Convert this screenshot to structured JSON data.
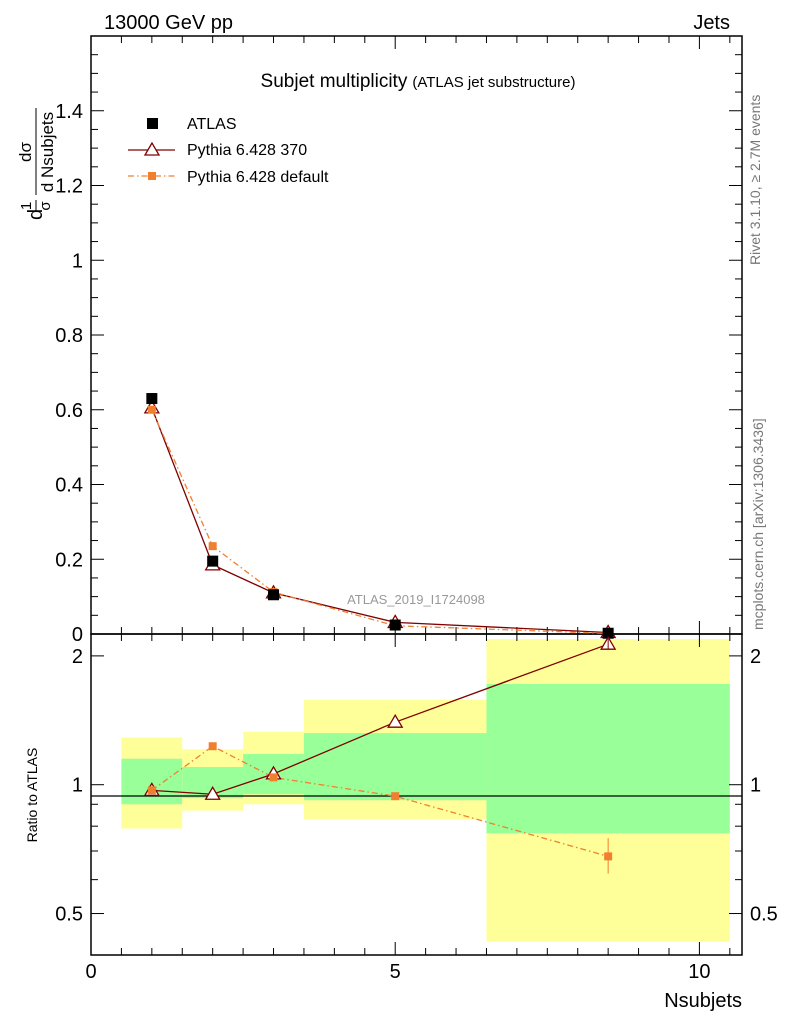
{
  "header": {
    "left": "13000 GeV pp",
    "right": "Jets"
  },
  "side_text": {
    "rivet": "Rivet 3.1.10, ≥ 2.7M events",
    "mcplots": "mcplots.cern.ch [arXiv:1306.3436]"
  },
  "chart_data": [
    {
      "type": "scatter",
      "title": "Subjet multiplicity",
      "subtitle": "(ATLAS jet substructure)",
      "watermark": "ATLAS_2019_I1724098",
      "ylabel": {
        "prefix": "d",
        "one": "1",
        "sigma": "σ",
        "num": "dσ",
        "den": "d Nsubjets"
      },
      "xlim": [
        0,
        10.7
      ],
      "ylim": [
        0,
        1.6
      ],
      "yticks": [
        "0",
        "0.2",
        "0.4",
        "0.6",
        "0.8",
        "1",
        "1.2",
        "1.4"
      ],
      "legend": {
        "position": "top-left",
        "entries": [
          "ATLAS",
          "Pythia 6.428 370",
          "Pythia 6.428 default"
        ]
      },
      "series": [
        {
          "name": "ATLAS",
          "color": "#000000",
          "marker": "square",
          "x": [
            1,
            2,
            3,
            5,
            8.5
          ],
          "y": [
            0.63,
            0.195,
            0.105,
            0.024,
            0.002
          ]
        },
        {
          "name": "Pythia 6.428 370",
          "color": "#800000",
          "marker": "triangle",
          "line": "solid",
          "x": [
            1,
            2,
            3,
            5,
            8.5
          ],
          "y": [
            0.605,
            0.185,
            0.11,
            0.031,
            0.004
          ]
        },
        {
          "name": "Pythia 6.428 default",
          "color": "#f08030",
          "marker": "square-small",
          "line": "dashdot",
          "x": [
            1,
            2,
            3,
            5,
            8.5
          ],
          "y": [
            0.6,
            0.235,
            0.112,
            0.022,
            0.0015
          ]
        }
      ]
    },
    {
      "type": "scatter",
      "ylabel": "Ratio to ATLAS",
      "xlabel": "Nsubjets",
      "xlim": [
        0,
        10.7
      ],
      "ylim": [
        0.4,
        2.25
      ],
      "yscale": "log",
      "xticks": [
        "0",
        "5",
        "10"
      ],
      "yticks": [
        "0.5",
        "1",
        "2"
      ],
      "bands": {
        "bins": [
          [
            0.5,
            1.5
          ],
          [
            1.5,
            2.5
          ],
          [
            2.5,
            3.5
          ],
          [
            3.5,
            6.5
          ],
          [
            6.5,
            10.5
          ]
        ],
        "yellow": [
          [
            0.79,
            1.29
          ],
          [
            0.87,
            1.21
          ],
          [
            0.9,
            1.33
          ],
          [
            0.83,
            1.58
          ],
          [
            0.43,
            2.19
          ]
        ],
        "green": [
          [
            0.9,
            1.15
          ],
          [
            0.93,
            1.1
          ],
          [
            0.95,
            1.18
          ],
          [
            0.92,
            1.32
          ],
          [
            0.77,
            1.72
          ]
        ],
        "yellow_color": "#ffff99",
        "green_color": "#99ff99"
      },
      "series": [
        {
          "name": "Pythia 6.428 370",
          "color": "#800000",
          "marker": "triangle",
          "line": "solid",
          "x": [
            1,
            2,
            3,
            5,
            8.5
          ],
          "y": [
            0.97,
            0.95,
            1.06,
            1.4,
            2.13
          ]
        },
        {
          "name": "Pythia 6.428 default",
          "color": "#f08030",
          "marker": "square-small",
          "line": "dashdot",
          "x": [
            1,
            2,
            3,
            5,
            8.5
          ],
          "y": [
            0.97,
            1.23,
            1.04,
            0.94,
            0.68
          ]
        }
      ]
    }
  ]
}
